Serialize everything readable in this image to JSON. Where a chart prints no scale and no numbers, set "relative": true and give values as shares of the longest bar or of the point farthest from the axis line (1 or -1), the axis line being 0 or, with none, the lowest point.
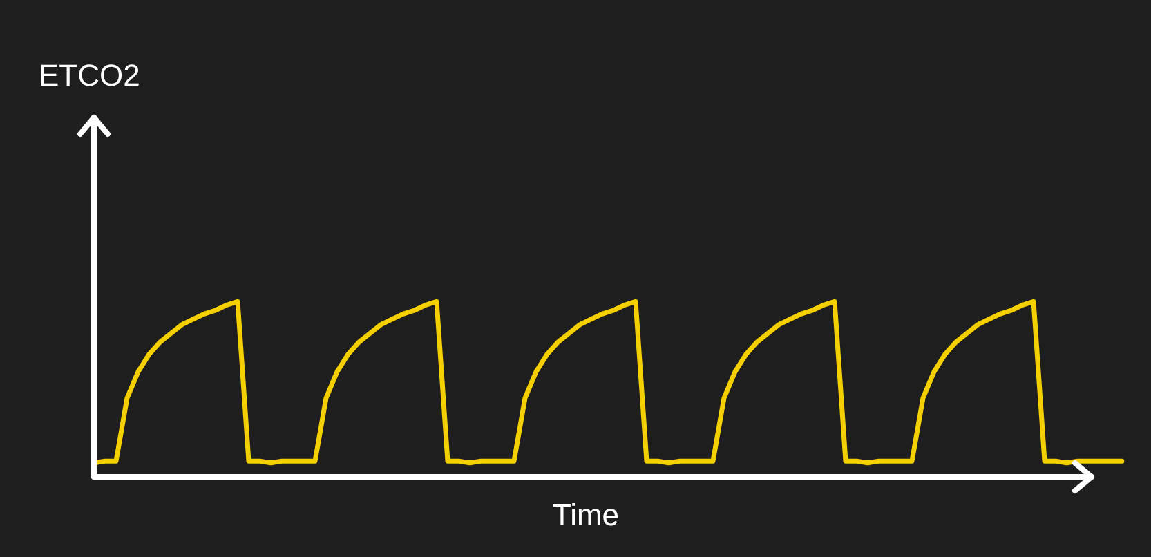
{
  "chart_data": {
    "type": "line",
    "relative": true,
    "xlabel": "Time",
    "annotations": [
      "ETCO2"
    ],
    "tick_labels": false,
    "legend": false,
    "marker": "none",
    "line_style": "solid",
    "categories": [
      null,
      null,
      null,
      null,
      null,
      null,
      null,
      null,
      null,
      null,
      null,
      null,
      null,
      null,
      null,
      null,
      null,
      null,
      null,
      null,
      null,
      null,
      null,
      null,
      null,
      null,
      null,
      null,
      null,
      null,
      null,
      null,
      null,
      null,
      null,
      null,
      null,
      null,
      null,
      null,
      null,
      null,
      null,
      null,
      null,
      null,
      null,
      null,
      null,
      null,
      null,
      null,
      null,
      null,
      null,
      null,
      null,
      null,
      null,
      null,
      null,
      null,
      null,
      null,
      null,
      null,
      null,
      null,
      null,
      null,
      null,
      null,
      null,
      null,
      null,
      null,
      null,
      null,
      null,
      null,
      null,
      null,
      null,
      null,
      null,
      null,
      null,
      null,
      null,
      null,
      null,
      null,
      null,
      null
    ],
    "series": [
      {
        "color": "#f5d000",
        "values": [
          0.08,
          0.09,
          0.09,
          0.45,
          0.6,
          0.7,
          0.77,
          0.82,
          0.87,
          0.9,
          0.93,
          0.95,
          0.98,
          1.0,
          0.09,
          0.09,
          0.08,
          0.09,
          0.09,
          0.09,
          0.09,
          0.45,
          0.6,
          0.7,
          0.77,
          0.82,
          0.87,
          0.9,
          0.93,
          0.95,
          0.98,
          1.0,
          0.09,
          0.09,
          0.08,
          0.09,
          0.09,
          0.09,
          0.09,
          0.45,
          0.6,
          0.7,
          0.77,
          0.82,
          0.87,
          0.9,
          0.93,
          0.95,
          0.98,
          1.0,
          0.09,
          0.09,
          0.08,
          0.09,
          0.09,
          0.09,
          0.09,
          0.45,
          0.6,
          0.7,
          0.77,
          0.82,
          0.87,
          0.9,
          0.93,
          0.95,
          0.98,
          1.0,
          0.09,
          0.09,
          0.08,
          0.09,
          0.09,
          0.09,
          0.09,
          0.45,
          0.6,
          0.7,
          0.77,
          0.82,
          0.87,
          0.9,
          0.93,
          0.95,
          0.98,
          1.0,
          0.09,
          0.09,
          0.08,
          0.09,
          0.09,
          0.09,
          0.09,
          0.09
        ]
      }
    ]
  }
}
